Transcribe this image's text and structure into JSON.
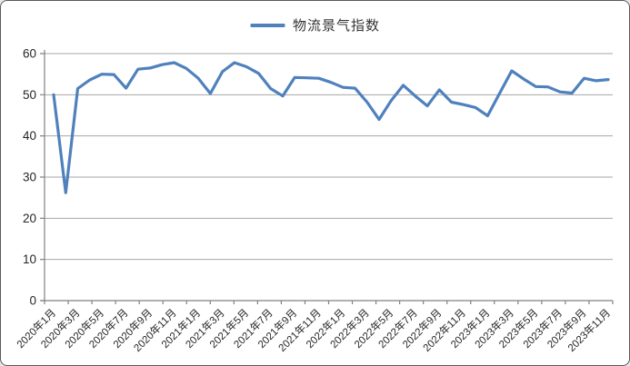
{
  "legend": {
    "label": "物流景气指数"
  },
  "colors": {
    "series_line": "#4F81BD",
    "gridline": "#A6A6A6",
    "axis": "#808080",
    "tick_label": "#262626"
  },
  "chart_data": {
    "type": "line",
    "title": "物流景气指数",
    "legend_position": "top-center",
    "grid": "horizontal",
    "xlabel": "",
    "ylabel": "",
    "ylim": [
      0,
      60
    ],
    "yticks": [
      0,
      10,
      20,
      30,
      40,
      50,
      60
    ],
    "x_label_every": 2,
    "x": [
      "2020年1月",
      "2020年2月",
      "2020年3月",
      "2020年4月",
      "2020年5月",
      "2020年6月",
      "2020年7月",
      "2020年8月",
      "2020年9月",
      "2020年10月",
      "2020年11月",
      "2020年12月",
      "2021年1月",
      "2021年2月",
      "2021年3月",
      "2021年4月",
      "2021年5月",
      "2021年6月",
      "2021年7月",
      "2021年8月",
      "2021年9月",
      "2021年10月",
      "2021年11月",
      "2021年12月",
      "2022年1月",
      "2022年2月",
      "2022年3月",
      "2022年4月",
      "2022年5月",
      "2022年6月",
      "2022年7月",
      "2022年8月",
      "2022年9月",
      "2022年10月",
      "2022年11月",
      "2022年12月",
      "2023年1月",
      "2023年2月",
      "2023年3月",
      "2023年4月",
      "2023年5月",
      "2023年6月",
      "2023年7月",
      "2023年8月",
      "2023年9月",
      "2023年10月",
      "2023年11月"
    ],
    "series": [
      {
        "name": "物流景气指数",
        "color": "#4F81BD",
        "values": [
          50.0,
          26.2,
          51.5,
          53.6,
          55.0,
          54.9,
          51.6,
          56.2,
          56.5,
          57.3,
          57.8,
          56.4,
          54.0,
          50.3,
          55.6,
          57.8,
          56.8,
          55.2,
          51.5,
          49.7,
          54.2,
          54.1,
          54.0,
          53.0,
          51.8,
          51.6,
          48.2,
          44.0,
          48.6,
          52.3,
          49.7,
          47.3,
          51.2,
          48.2,
          47.6,
          46.9,
          44.9,
          50.4,
          55.8,
          53.8,
          52.0,
          51.9,
          50.7,
          50.4,
          54.0,
          53.4,
          53.7
        ]
      }
    ]
  }
}
